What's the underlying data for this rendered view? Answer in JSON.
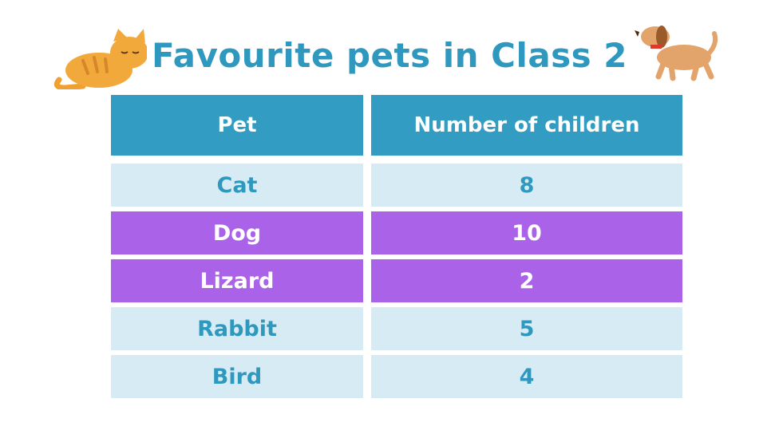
{
  "header": {
    "title": "Favourite pets in Class 2"
  },
  "table": {
    "columns": [
      "Pet",
      "Number of children"
    ],
    "rows": [
      [
        "Cat",
        8
      ],
      [
        "Dog",
        10
      ],
      [
        "Lizard",
        2
      ],
      [
        "Rabbit",
        5
      ],
      [
        "Bird",
        4
      ]
    ]
  }
}
